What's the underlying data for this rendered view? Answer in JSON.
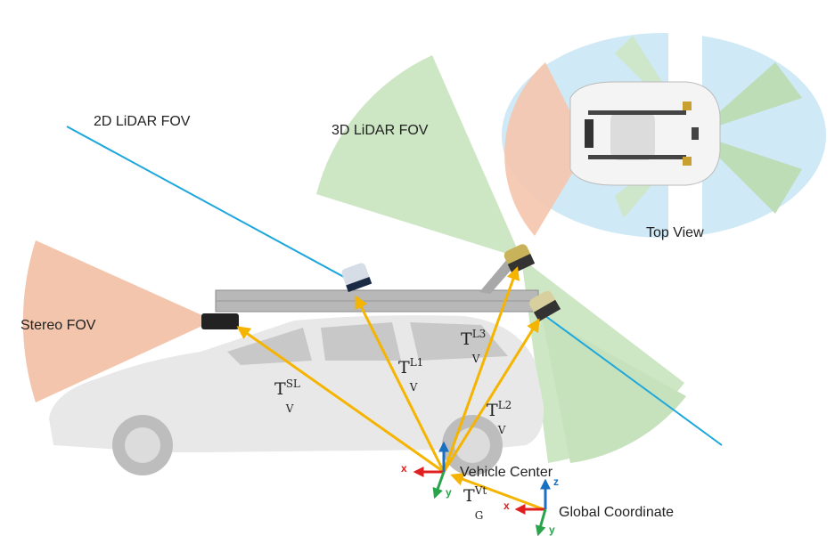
{
  "labels": {
    "lidar2d_fov": "2D LiDAR FOV",
    "lidar3d_fov": "3D LiDAR FOV",
    "stereo_fov": "Stereo FOV",
    "top_view": "Top View",
    "vehicle_center": "Vehicle Center",
    "global_coordinate": "Global Coordinate"
  },
  "transforms": {
    "stereo": {
      "base": "T",
      "sub": "V",
      "sup": "S",
      "sup_sub": "L"
    },
    "lidar1": {
      "base": "T",
      "sub": "V",
      "sup": "L",
      "sup_sub": "1"
    },
    "lidar2": {
      "base": "T",
      "sub": "V",
      "sup": "L",
      "sup_sub": "2"
    },
    "lidar3": {
      "base": "T",
      "sub": "V",
      "sup": "L",
      "sup_sub": "3"
    },
    "global": {
      "base": "T",
      "sub": "G",
      "sup": "V",
      "sup_sub": "t"
    }
  },
  "axes": {
    "x": "x",
    "y": "y",
    "z": "z"
  },
  "colors": {
    "stereo_fov": "#f4c5ad",
    "lidar3d_fov": "#cde6c4",
    "top_view_fov": "#cfe9f6",
    "lidar2d_line": "#1ea7dc",
    "transform_arrow": "#f5b400",
    "axis_x": "#e02020",
    "axis_y": "#2aa34a",
    "axis_z": "#1a6fc0"
  }
}
